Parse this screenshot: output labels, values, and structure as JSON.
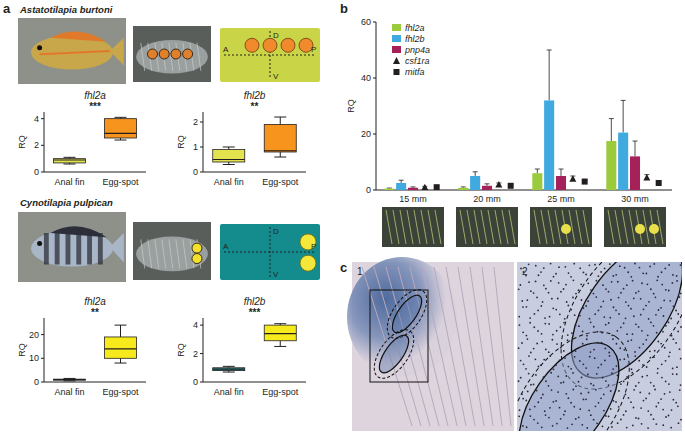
{
  "figure": {
    "panel_labels": [
      "a",
      "b",
      "c"
    ],
    "species": [
      "Astatotilapia burtoni",
      "Cynotilapia pulpican"
    ],
    "axis_letters": [
      "D",
      "V",
      "A",
      "P"
    ],
    "image_labels": [
      "1",
      "2"
    ]
  },
  "chart_data": [
    {
      "type": "box",
      "title": "fhl2a",
      "y_label": "RQ",
      "categories": [
        "Anal fin",
        "Egg-spot"
      ],
      "values": [
        [
          0.6,
          0.68,
          0.9,
          1.0,
          1.1
        ],
        [
          2.4,
          2.55,
          2.9,
          4.0,
          4.1
        ]
      ],
      "colors": [
        "#e3e34f",
        "#f7941d"
      ],
      "annotations": [
        "***"
      ],
      "ylim": [
        0,
        4.5
      ],
      "yticks": [
        0,
        2,
        4
      ]
    },
    {
      "type": "box",
      "title": "fhl2b",
      "y_label": "RQ",
      "categories": [
        "Anal fin",
        "Egg-spot"
      ],
      "values": [
        [
          0.3,
          0.4,
          0.5,
          0.9,
          1.0
        ],
        [
          0.6,
          0.8,
          0.85,
          1.9,
          2.2
        ]
      ],
      "colors": [
        "#e3e34f",
        "#f7941d"
      ],
      "annotations": [
        "**"
      ],
      "ylim": [
        0,
        2.4
      ],
      "yticks": [
        0,
        1,
        2
      ]
    },
    {
      "type": "box",
      "title": "fhl2a",
      "y_label": "RQ",
      "categories": [
        "Anal fin",
        "Egg-spot"
      ],
      "values": [
        [
          0.5,
          0.8,
          1.0,
          1.2,
          1.5
        ],
        [
          8,
          10,
          14,
          19,
          24
        ]
      ],
      "colors": [
        "#2aa39f",
        "#f7ea1c"
      ],
      "annotations": [
        "**"
      ],
      "ylim": [
        0,
        27
      ],
      "yticks": [
        0,
        10,
        20
      ]
    },
    {
      "type": "box",
      "title": "fhl2b",
      "y_label": "RQ",
      "categories": [
        "Anal fin",
        "Egg-spot"
      ],
      "values": [
        [
          0.7,
          0.8,
          0.9,
          1.0,
          1.1
        ],
        [
          2.5,
          2.9,
          3.4,
          4.0,
          4.1
        ]
      ],
      "colors": [
        "#2aa39f",
        "#f7ea1c"
      ],
      "annotations": [
        "***"
      ],
      "ylim": [
        0,
        4.5
      ],
      "yticks": [
        0,
        2,
        4
      ]
    },
    {
      "type": "bar",
      "y_label": "RQ",
      "categories": [
        "15 mm",
        "20 mm",
        "25 mm",
        "30 mm"
      ],
      "series": [
        {
          "name": "fhl2a",
          "color": "#9bcb3c",
          "values": [
            0.5,
            0.8,
            6,
            17.5
          ],
          "errors": [
            0.2,
            0.3,
            1.5,
            8
          ]
        },
        {
          "name": "fhl2b",
          "color": "#3fa9e0",
          "values": [
            2.5,
            5,
            32,
            20.5
          ],
          "errors": [
            1,
            1.5,
            18,
            11.5
          ]
        },
        {
          "name": "pnp4a",
          "color": "#a6215a",
          "values": [
            0.8,
            1.5,
            5,
            12
          ],
          "errors": [
            0.3,
            0.7,
            2.5,
            5.5
          ]
        },
        {
          "name": "csf1ra",
          "type": "scatter",
          "marker": "triangle",
          "color": "#231f20",
          "values": [
            1,
            2,
            4,
            4.5
          ],
          "errors": [
            0.3,
            0.5,
            1,
            1
          ]
        },
        {
          "name": "mitfa",
          "type": "scatter",
          "marker": "square",
          "color": "#231f20",
          "values": [
            1,
            1.5,
            3,
            2.5
          ],
          "errors": [
            0.3,
            0.5,
            0.8,
            0.8
          ]
        }
      ],
      "ylim": [
        0,
        60
      ],
      "yticks": [
        0,
        20,
        40,
        60
      ],
      "legend": "upper left"
    }
  ]
}
